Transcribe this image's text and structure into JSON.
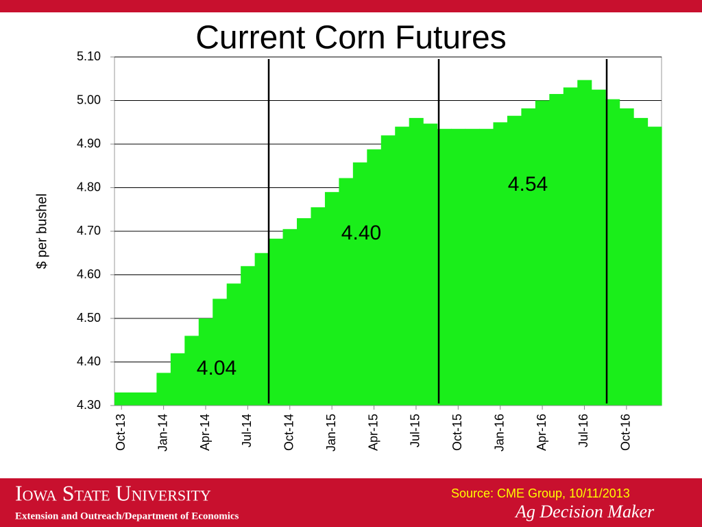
{
  "chart_data": {
    "type": "bar",
    "title": "Current Corn Futures",
    "y_label": "$ per bushel",
    "categories": [
      "Oct-13",
      null,
      null,
      "Jan-14",
      null,
      null,
      "Apr-14",
      null,
      null,
      "Jul-14",
      null,
      null,
      "Oct-14",
      null,
      null,
      "Jan-15",
      null,
      null,
      "Apr-15",
      null,
      null,
      "Jul-15",
      null,
      null,
      "Oct-15",
      null,
      null,
      "Jan-16",
      null,
      null,
      "Apr-16",
      null,
      null,
      "Jul-16",
      null,
      null,
      "Oct-16",
      null,
      null
    ],
    "values": [
      4.33,
      4.33,
      4.33,
      4.375,
      4.42,
      4.46,
      4.5,
      4.545,
      4.58,
      4.62,
      4.65,
      4.683,
      4.705,
      4.73,
      4.755,
      4.79,
      4.822,
      4.858,
      4.888,
      4.92,
      4.94,
      4.96,
      4.947,
      4.935,
      4.935,
      4.935,
      4.935,
      4.95,
      4.965,
      4.982,
      5.0,
      5.015,
      5.03,
      5.047,
      5.025,
      5.003,
      4.982,
      4.96,
      4.94
    ],
    "color": "#1aee1a",
    "ylim": [
      4.3,
      5.1
    ],
    "yticks": [
      {
        "value": 4.3,
        "label": "4.30"
      },
      {
        "value": 4.4,
        "label": "4.40"
      },
      {
        "value": 4.5,
        "label": "4.50"
      },
      {
        "value": 4.6,
        "label": "4.60"
      },
      {
        "value": 4.7,
        "label": "4.70"
      },
      {
        "value": 4.8,
        "label": "4.80"
      },
      {
        "value": 4.9,
        "label": "4.90"
      },
      {
        "value": 5.0,
        "label": "5.00"
      },
      {
        "value": 5.1,
        "label": "5.10"
      }
    ],
    "grid": true,
    "annotations": [
      "4.04",
      "4.40",
      "4.54"
    ]
  },
  "footer": {
    "university": "Iowa State University",
    "department": "Extension and Outreach/Department of Economics",
    "source": "Source: CME Group, 10/11/2013",
    "brand": "Ag Decision Maker"
  }
}
